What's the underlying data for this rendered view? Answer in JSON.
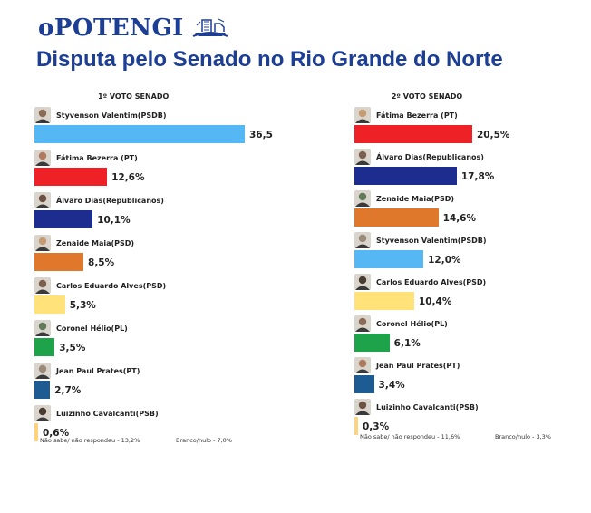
{
  "logo": {
    "text": "oPOTENGI",
    "icon": "ship-icon",
    "color": "#1c3f95"
  },
  "headline": "Disputa pelo Senado no Rio Grande do Norte",
  "chart_data": [
    {
      "type": "bar",
      "orientation": "horizontal",
      "title": "1º VOTO SENADO",
      "categories": [
        "Styvenson Valentim(PSDB)",
        "Fátima Bezerra (PT)",
        "Álvaro Dias(Republicanos)",
        "Zenaide Maia(PSD)",
        "Carlos Eduardo Alves(PSD)",
        "Coronel Hélio(PL)",
        "Jean Paul Prates(PT)",
        "Luizinho Cavalcanti(PSB)"
      ],
      "values": [
        36.5,
        12.6,
        10.1,
        8.5,
        5.3,
        3.5,
        2.7,
        0.6
      ],
      "labels": [
        "36,5",
        "12,6%",
        "10,1%",
        "8,5%",
        "5,3%",
        "3,5%",
        "2,7%",
        "0,6%"
      ],
      "colors": [
        "#55b7f3",
        "#ee2126",
        "#1d2d8f",
        "#e0782b",
        "#ffe27a",
        "#1fa34a",
        "#1e5b93",
        "#ffd27e"
      ],
      "xlim": [
        0,
        36.5
      ],
      "footer": {
        "left": "Não sabe/ não respondeu - 13,2%",
        "right": "Branco/nulo - 7,0%"
      }
    },
    {
      "type": "bar",
      "orientation": "horizontal",
      "title": "2º VOTO SENADO",
      "categories": [
        "Fátima Bezerra (PT)",
        "Álvaro Dias(Republicanos)",
        "Zenaide Maia(PSD)",
        "Styvenson Valentim(PSDB)",
        "Carlos Eduardo Alves(PSD)",
        "Coronel Hélio(PL)",
        "Jean Paul Prates(PT)",
        "Luizinho Cavalcanti(PSB)"
      ],
      "values": [
        20.5,
        17.8,
        14.6,
        12.0,
        10.4,
        6.1,
        3.4,
        0.3
      ],
      "labels": [
        "20,5%",
        "17,8%",
        "14,6%",
        "12,0%",
        "10,4%",
        "6,1%",
        "3,4%",
        "0,3%"
      ],
      "colors": [
        "#ee2126",
        "#1d2d8f",
        "#e0782b",
        "#55b7f3",
        "#ffe27a",
        "#1fa34a",
        "#1e5b93",
        "#ffd27e"
      ],
      "xlim": [
        0,
        20.5
      ],
      "footer": {
        "left": "Não sabe/ não respondeu - 11,6%",
        "right": "Branco/nulo - 3,3%"
      }
    }
  ]
}
